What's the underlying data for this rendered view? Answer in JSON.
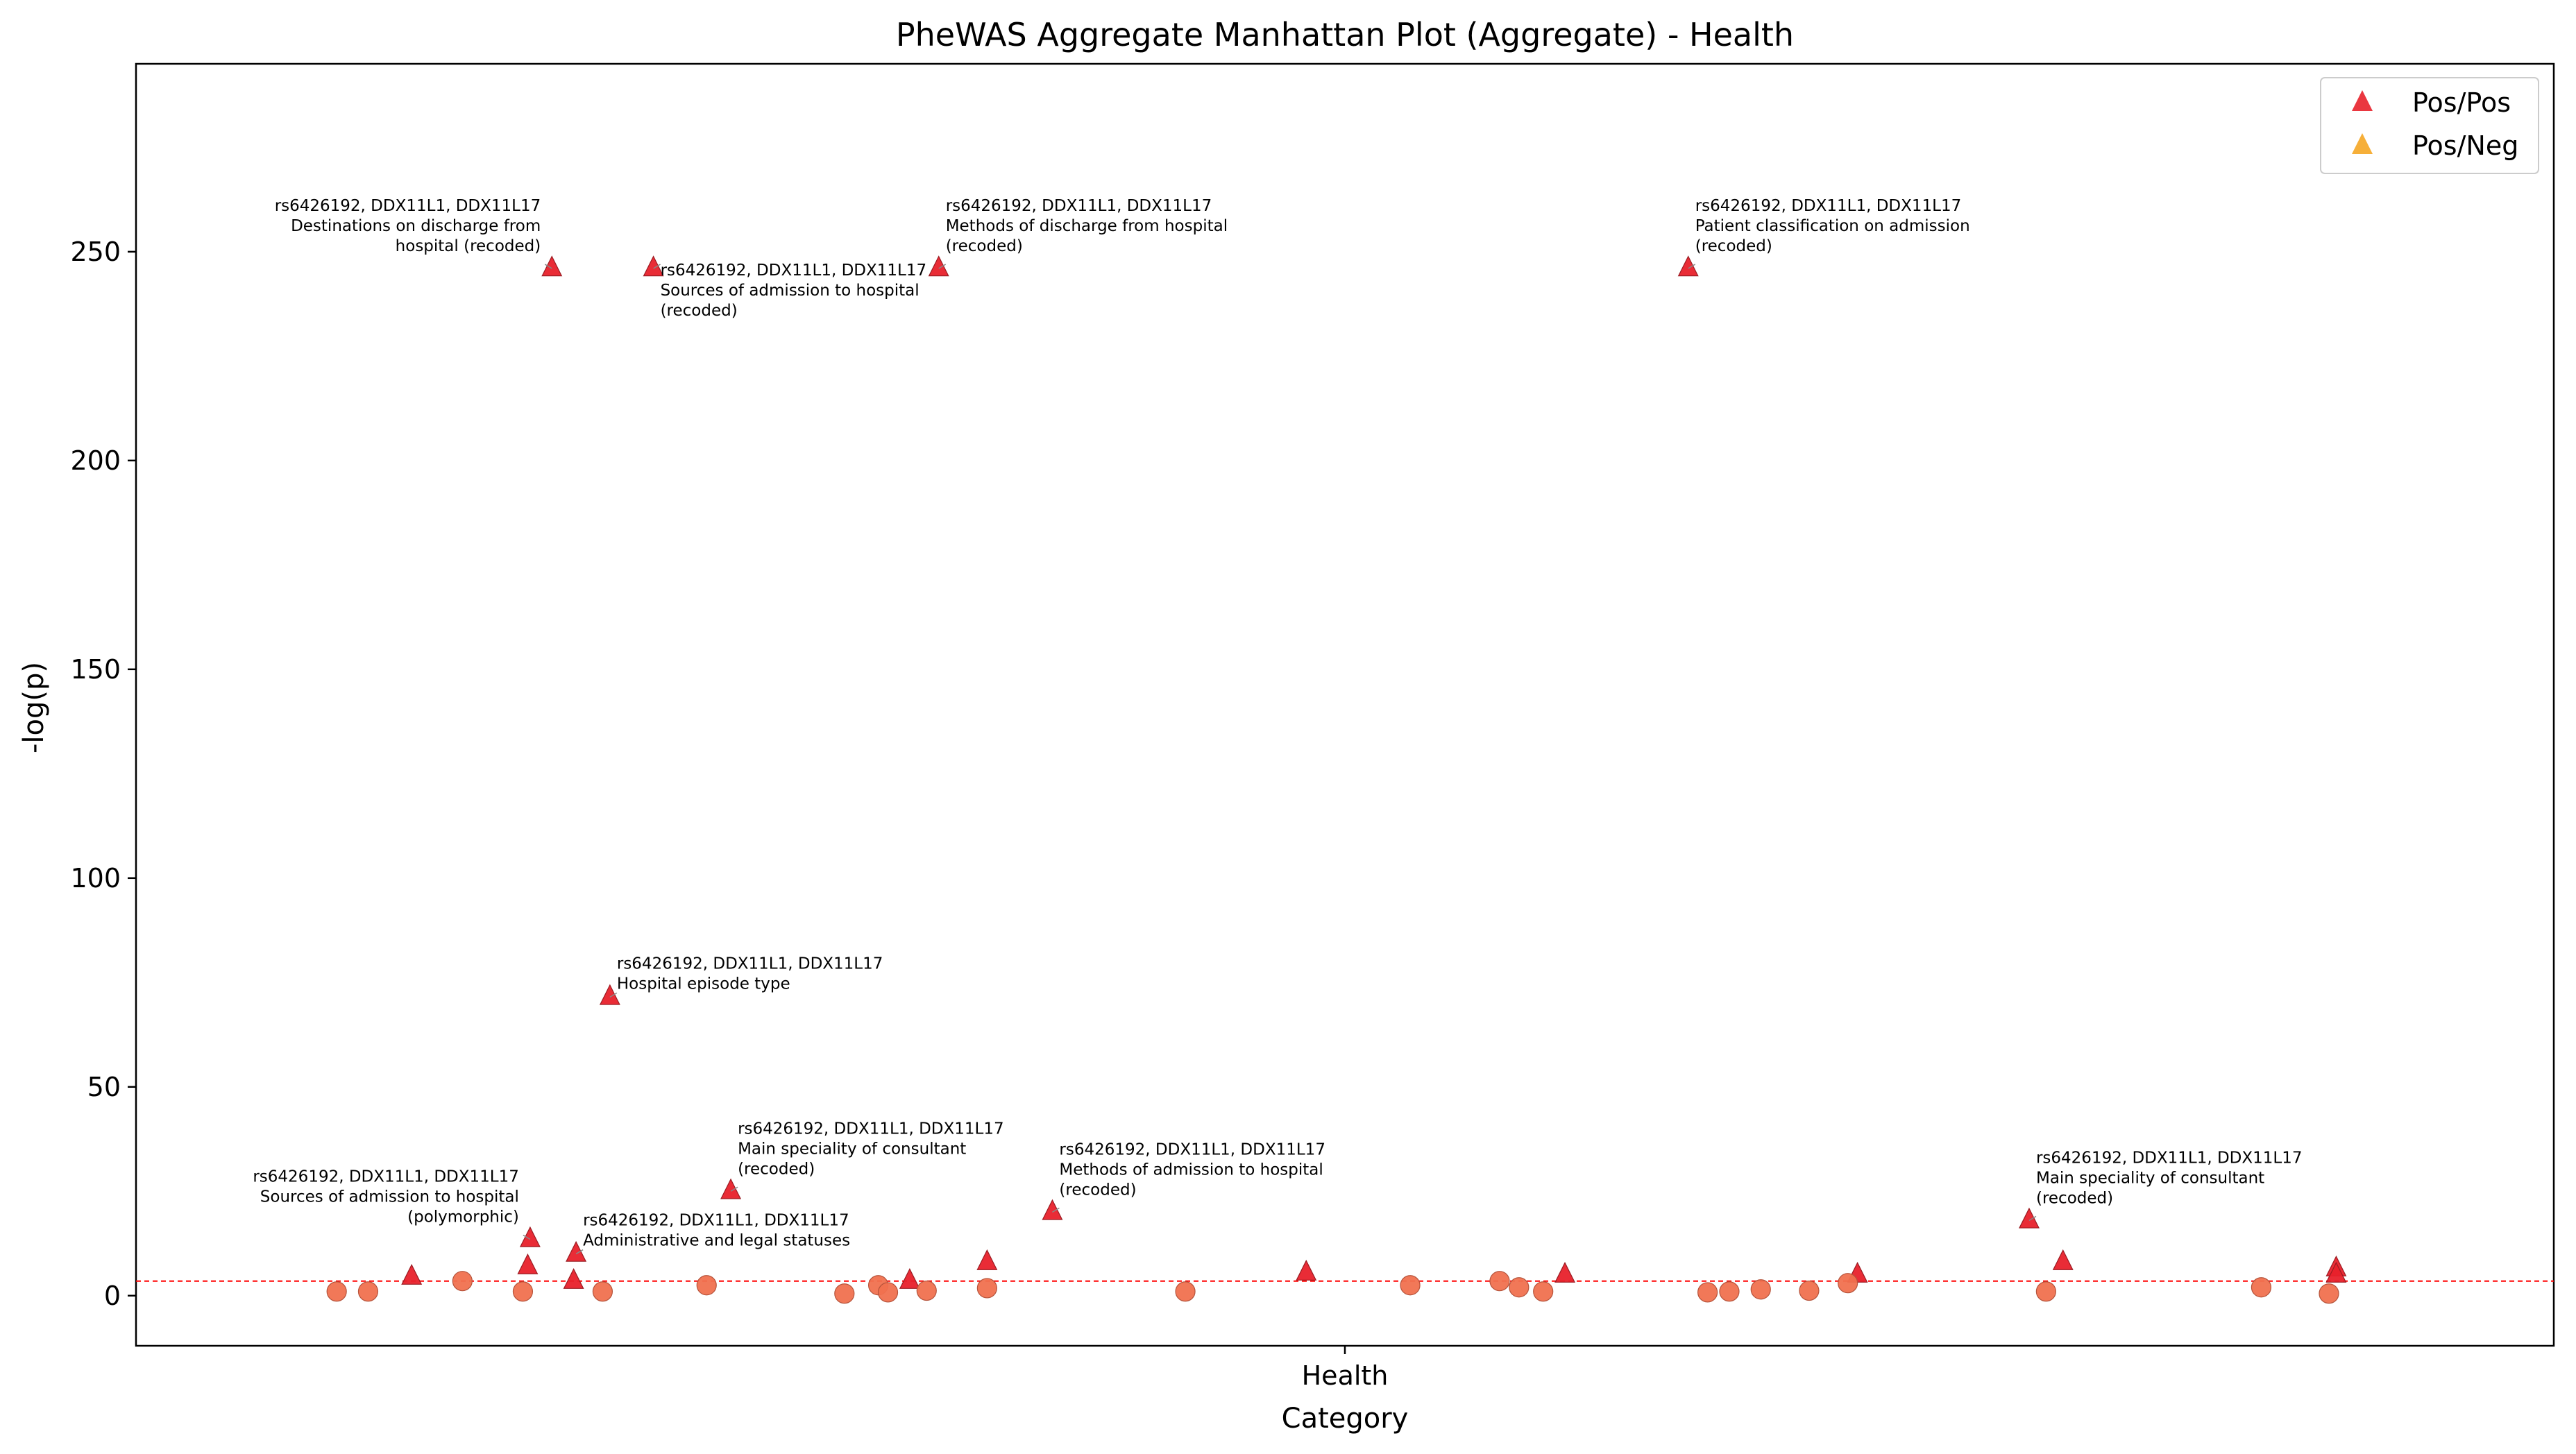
{
  "chart_data": {
    "type": "scatter",
    "title": "PheWAS Aggregate Manhattan Plot (Aggregate) - Health",
    "xlabel": "Category",
    "ylabel": "-log(p)",
    "x_tick_labels": [
      "Health"
    ],
    "y_ticks": [
      0,
      50,
      100,
      150,
      200,
      250
    ],
    "xlim": [
      0,
      100
    ],
    "ylim": [
      -12,
      295
    ],
    "threshold_line": {
      "y": 3.5,
      "color": "#ff0000",
      "style": "dashed"
    },
    "legend": {
      "placement": "top-right",
      "entries": [
        {
          "label": "Pos/Pos",
          "color": "#e8212b",
          "marker": "triangle"
        },
        {
          "label": "Pos/Neg",
          "color": "#f5a623",
          "marker": "triangle"
        }
      ]
    },
    "colors": {
      "triangle": "#e8212b",
      "circle": "#f0714f"
    },
    "series": [
      {
        "marker": "triangle",
        "points": [
          {
            "x": 11.4,
            "y": 4.5
          },
          {
            "x": 16.2,
            "y": 7
          },
          {
            "x": 16.3,
            "y": 13.5
          },
          {
            "x": 17.2,
            "y": 246
          },
          {
            "x": 18.1,
            "y": 3.5
          },
          {
            "x": 18.2,
            "y": 10
          },
          {
            "x": 19.6,
            "y": 71.5
          },
          {
            "x": 21.4,
            "y": 246
          },
          {
            "x": 24.6,
            "y": 25
          },
          {
            "x": 32.0,
            "y": 3.5
          },
          {
            "x": 33.2,
            "y": 246
          },
          {
            "x": 35.2,
            "y": 8
          },
          {
            "x": 37.9,
            "y": 20
          },
          {
            "x": 48.4,
            "y": 5.5
          },
          {
            "x": 59.1,
            "y": 5
          },
          {
            "x": 64.2,
            "y": 246
          },
          {
            "x": 71.2,
            "y": 5
          },
          {
            "x": 78.3,
            "y": 18
          },
          {
            "x": 79.7,
            "y": 8
          },
          {
            "x": 91.0,
            "y": 6.5
          },
          {
            "x": 91.0,
            "y": 5
          }
        ]
      },
      {
        "marker": "circle",
        "points": [
          {
            "x": 8.3,
            "y": 1
          },
          {
            "x": 9.6,
            "y": 1
          },
          {
            "x": 13.5,
            "y": 3.5
          },
          {
            "x": 16.0,
            "y": 1
          },
          {
            "x": 19.3,
            "y": 1
          },
          {
            "x": 23.6,
            "y": 2.5
          },
          {
            "x": 29.3,
            "y": 0.5
          },
          {
            "x": 30.7,
            "y": 2.5
          },
          {
            "x": 31.1,
            "y": 0.8
          },
          {
            "x": 32.7,
            "y": 1.2
          },
          {
            "x": 35.2,
            "y": 1.8
          },
          {
            "x": 43.4,
            "y": 1
          },
          {
            "x": 52.7,
            "y": 2.5
          },
          {
            "x": 56.4,
            "y": 3.5
          },
          {
            "x": 57.2,
            "y": 2
          },
          {
            "x": 58.2,
            "y": 1
          },
          {
            "x": 65.0,
            "y": 0.8
          },
          {
            "x": 65.9,
            "y": 1
          },
          {
            "x": 67.2,
            "y": 1.5
          },
          {
            "x": 69.2,
            "y": 1.2
          },
          {
            "x": 70.8,
            "y": 3
          },
          {
            "x": 79.0,
            "y": 1
          },
          {
            "x": 87.9,
            "y": 2
          },
          {
            "x": 90.7,
            "y": 0.5
          }
        ]
      }
    ],
    "annotations": [
      {
        "x": 17.2,
        "y": 246,
        "align": "end",
        "dy": -25,
        "lines": [
          "rs6426192, DDX11L1, DDX11L17",
          "Destinations on discharge from",
          "hospital (recoded)"
        ]
      },
      {
        "x": 21.4,
        "y": 246,
        "align": "start",
        "dy": 10,
        "lines": [
          "rs6426192, DDX11L1, DDX11L17",
          "Sources of admission to hospital",
          "(recoded)"
        ]
      },
      {
        "x": 33.2,
        "y": 246,
        "align": "start",
        "dy": -25,
        "lines": [
          "rs6426192, DDX11L1, DDX11L17",
          "Methods of discharge from hospital",
          "(recoded)"
        ]
      },
      {
        "x": 64.2,
        "y": 246,
        "align": "start",
        "dy": -25,
        "lines": [
          "rs6426192, DDX11L1, DDX11L17",
          "Patient classification on admission",
          "(recoded)"
        ]
      },
      {
        "x": 19.6,
        "y": 71.5,
        "align": "start",
        "dy": -12,
        "lines": [
          "rs6426192, DDX11L1, DDX11L17",
          "Hospital episode type"
        ]
      },
      {
        "x": 24.6,
        "y": 25,
        "align": "start",
        "dy": -25,
        "lines": [
          "rs6426192, DDX11L1, DDX11L17",
          "Main speciality of consultant",
          "(recoded)"
        ]
      },
      {
        "x": 16.3,
        "y": 13.5,
        "align": "end",
        "dy": -25,
        "lines": [
          "rs6426192, DDX11L1, DDX11L17",
          "Sources of admission to hospital",
          "(polymorphic)"
        ]
      },
      {
        "x": 18.2,
        "y": 10,
        "align": "start",
        "dy": -12,
        "lines": [
          "rs6426192, DDX11L1, DDX11L17",
          "Administrative and legal statuses"
        ]
      },
      {
        "x": 37.9,
        "y": 20,
        "align": "start",
        "dy": -25,
        "lines": [
          "rs6426192, DDX11L1, DDX11L17",
          "Methods of admission to hospital",
          "(recoded)"
        ]
      },
      {
        "x": 78.3,
        "y": 18,
        "align": "start",
        "dy": -25,
        "lines": [
          "rs6426192, DDX11L1, DDX11L17",
          "Main speciality of consultant",
          "(recoded)"
        ]
      }
    ]
  }
}
